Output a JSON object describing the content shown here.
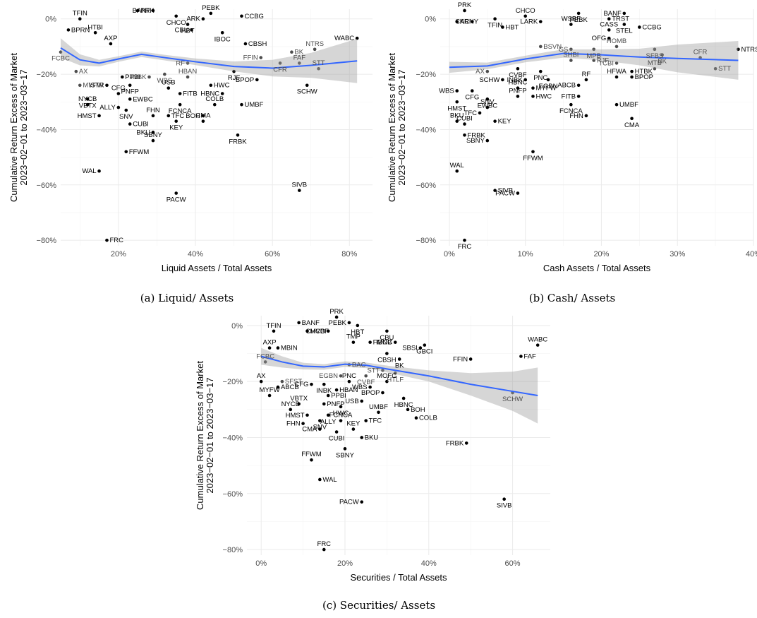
{
  "chart_data": [
    {
      "type": "scatter",
      "caption": "(a) Liquid/ Assets",
      "xlabel": "Liquid Assets / Total Assets",
      "ylabel": "Cumulative Return Excess of Market\n2023−02−01 to 2023−03−17",
      "x_ticks": [
        "20%",
        "40%",
        "60%",
        "80%"
      ],
      "y_ticks": [
        "0%",
        "−20%",
        "−40%",
        "−60%",
        "−80%"
      ],
      "xlim": [
        0.05,
        0.86
      ],
      "ylim": [
        -0.82,
        0.035
      ],
      "smoother": {
        "color": "#3366ff",
        "band": "95% CI (grey)"
      },
      "points": [
        {
          "label": "TFIN",
          "x": 0.1,
          "y": 0.0
        },
        {
          "label": "PRK",
          "x": 0.25,
          "y": 0.03
        },
        {
          "label": "BANF",
          "x": 0.29,
          "y": 0.03
        },
        {
          "label": "CHCO",
          "x": 0.35,
          "y": 0.01
        },
        {
          "label": "PEBK",
          "x": 0.44,
          "y": 0.02
        },
        {
          "label": "CCBG",
          "x": 0.52,
          "y": 0.01
        },
        {
          "label": "ARK",
          "x": 0.42,
          "y": 0.0
        },
        {
          "label": "HBT",
          "x": 0.38,
          "y": -0.02
        },
        {
          "label": "HTBI",
          "x": 0.14,
          "y": -0.05
        },
        {
          "label": "BPRN",
          "x": 0.07,
          "y": -0.04
        },
        {
          "label": "CBU",
          "x": 0.39,
          "y": -0.04
        },
        {
          "label": "IBOC",
          "x": 0.47,
          "y": -0.05
        },
        {
          "label": "AXP",
          "x": 0.18,
          "y": -0.09
        },
        {
          "label": "CBSH",
          "x": 0.53,
          "y": -0.09
        },
        {
          "label": "WABC",
          "x": 0.82,
          "y": -0.07
        },
        {
          "label": "FCBC",
          "x": 0.05,
          "y": -0.12
        },
        {
          "label": "NTRS",
          "x": 0.71,
          "y": -0.11
        },
        {
          "label": "BK",
          "x": 0.65,
          "y": -0.12
        },
        {
          "label": "FFIN",
          "x": 0.57,
          "y": -0.14
        },
        {
          "label": "CFR",
          "x": 0.62,
          "y": -0.16
        },
        {
          "label": "FAF",
          "x": 0.67,
          "y": -0.16
        },
        {
          "label": "AX",
          "x": 0.09,
          "y": -0.19
        },
        {
          "label": "RF",
          "x": 0.38,
          "y": -0.16
        },
        {
          "label": "RJF",
          "x": 0.5,
          "y": -0.19
        },
        {
          "label": "STT",
          "x": 0.72,
          "y": -0.18
        },
        {
          "label": "PPBI",
          "x": 0.21,
          "y": -0.21
        },
        {
          "label": "INBK",
          "x": 0.28,
          "y": -0.21
        },
        {
          "label": "WBS",
          "x": 0.32,
          "y": -0.2
        },
        {
          "label": "HBAN",
          "x": 0.38,
          "y": -0.21
        },
        {
          "label": "MYFW",
          "x": 0.1,
          "y": -0.24
        },
        {
          "label": "ISTR",
          "x": 0.17,
          "y": -0.24
        },
        {
          "label": "PNFP",
          "x": 0.23,
          "y": -0.24
        },
        {
          "label": "USB",
          "x": 0.33,
          "y": -0.25
        },
        {
          "label": "HWC",
          "x": 0.44,
          "y": -0.24
        },
        {
          "label": "BPOP",
          "x": 0.56,
          "y": -0.22
        },
        {
          "label": "VBTX",
          "x": 0.12,
          "y": -0.29
        },
        {
          "label": "CFG",
          "x": 0.2,
          "y": -0.27
        },
        {
          "label": "FITB",
          "x": 0.36,
          "y": -0.27
        },
        {
          "label": "HBNC",
          "x": 0.47,
          "y": -0.27
        },
        {
          "label": "SCHW",
          "x": 0.69,
          "y": -0.24
        },
        {
          "label": "NYCB",
          "x": 0.12,
          "y": -0.31
        },
        {
          "label": "EWBC",
          "x": 0.23,
          "y": -0.29
        },
        {
          "label": "ALLY",
          "x": 0.2,
          "y": -0.32
        },
        {
          "label": "FCNCA",
          "x": 0.36,
          "y": -0.31
        },
        {
          "label": "COLB",
          "x": 0.45,
          "y": -0.31
        },
        {
          "label": "UMBF",
          "x": 0.52,
          "y": -0.31
        },
        {
          "label": "HMST",
          "x": 0.15,
          "y": -0.35
        },
        {
          "label": "SNV",
          "x": 0.22,
          "y": -0.33
        },
        {
          "label": "FHN",
          "x": 0.29,
          "y": -0.35
        },
        {
          "label": "TFC",
          "x": 0.33,
          "y": -0.35
        },
        {
          "label": "BOH",
          "x": 0.42,
          "y": -0.35
        },
        {
          "label": "KEY",
          "x": 0.35,
          "y": -0.37
        },
        {
          "label": "CMA",
          "x": 0.42,
          "y": -0.37
        },
        {
          "label": "CUBI",
          "x": 0.23,
          "y": -0.38
        },
        {
          "label": "BKU",
          "x": 0.29,
          "y": -0.41
        },
        {
          "label": "FRBK",
          "x": 0.51,
          "y": -0.42
        },
        {
          "label": "SBNY",
          "x": 0.29,
          "y": -0.44
        },
        {
          "label": "FFWM",
          "x": 0.22,
          "y": -0.48
        },
        {
          "label": "WAL",
          "x": 0.15,
          "y": -0.55
        },
        {
          "label": "PACW",
          "x": 0.35,
          "y": -0.63
        },
        {
          "label": "SIVB",
          "x": 0.67,
          "y": -0.62
        },
        {
          "label": "FRC",
          "x": 0.17,
          "y": -0.8
        }
      ]
    },
    {
      "type": "scatter",
      "caption": "(b) Cash/ Assets",
      "xlabel": "Cash Assets / Total Assets",
      "ylabel": "Cumulative Return Excess of Market\n2023−02−01 to 2023−03−17",
      "x_ticks": [
        "0%",
        "10%",
        "20%",
        "30%",
        "40%"
      ],
      "y_ticks": [
        "0%",
        "−20%",
        "−40%",
        "−60%",
        "−80%"
      ],
      "xlim": [
        -0.012,
        0.4
      ],
      "ylim": [
        -0.82,
        0.035
      ],
      "smoother": {
        "color": "#3366ff",
        "band": "95% CI (grey)"
      },
      "points": [
        {
          "label": "PRK",
          "x": 0.02,
          "y": 0.03
        },
        {
          "label": "KRNY",
          "x": 0.01,
          "y": -0.01
        },
        {
          "label": "CAC",
          "x": 0.03,
          "y": -0.01
        },
        {
          "label": "TFIN",
          "x": 0.06,
          "y": 0.0
        },
        {
          "label": "CHCO",
          "x": 0.1,
          "y": 0.01
        },
        {
          "label": "HBT",
          "x": 0.07,
          "y": -0.03
        },
        {
          "label": "LARK",
          "x": 0.12,
          "y": -0.01
        },
        {
          "label": "PEBK",
          "x": 0.17,
          "y": 0.02
        },
        {
          "label": "WSBF",
          "x": 0.16,
          "y": -0.02
        },
        {
          "label": "TRST",
          "x": 0.21,
          "y": 0.0
        },
        {
          "label": "BANF",
          "x": 0.23,
          "y": 0.02
        },
        {
          "label": "STEL",
          "x": 0.23,
          "y": -0.02
        },
        {
          "label": "CASS",
          "x": 0.21,
          "y": -0.04
        },
        {
          "label": "CCBG",
          "x": 0.25,
          "y": -0.03
        },
        {
          "label": "OFG",
          "x": 0.21,
          "y": -0.07
        },
        {
          "label": "MPB",
          "x": 0.19,
          "y": -0.11
        },
        {
          "label": "HOMB",
          "x": 0.22,
          "y": -0.1
        },
        {
          "label": "BSVN",
          "x": 0.12,
          "y": -0.1
        },
        {
          "label": "GS",
          "x": 0.16,
          "y": -0.11
        },
        {
          "label": "SFBS",
          "x": 0.27,
          "y": -0.11
        },
        {
          "label": "CFR",
          "x": 0.33,
          "y": -0.14
        },
        {
          "label": "NTRS",
          "x": 0.38,
          "y": -0.11
        },
        {
          "label": "AX",
          "x": 0.05,
          "y": -0.19
        },
        {
          "label": "CVBF",
          "x": 0.09,
          "y": -0.18
        },
        {
          "label": "SHBI",
          "x": 0.16,
          "y": -0.15
        },
        {
          "label": "RJF",
          "x": 0.19,
          "y": -0.15
        },
        {
          "label": "TCBI",
          "x": 0.22,
          "y": -0.16
        },
        {
          "label": "BK",
          "x": 0.28,
          "y": -0.13
        },
        {
          "label": "MTB",
          "x": 0.27,
          "y": -0.18
        },
        {
          "label": "STT",
          "x": 0.35,
          "y": -0.18
        },
        {
          "label": "SCHW",
          "x": 0.07,
          "y": -0.22
        },
        {
          "label": "PNC",
          "x": 0.12,
          "y": -0.19
        },
        {
          "label": "HFWA",
          "x": 0.22,
          "y": -0.21
        },
        {
          "label": "HTBK",
          "x": 0.24,
          "y": -0.19
        },
        {
          "label": "INBK",
          "x": 0.1,
          "y": -0.22
        },
        {
          "label": "EGBN",
          "x": 0.13,
          "y": -0.22
        },
        {
          "label": "RF",
          "x": 0.18,
          "y": -0.22
        },
        {
          "label": "BPOP",
          "x": 0.24,
          "y": -0.21
        },
        {
          "label": "WBS",
          "x": 0.01,
          "y": -0.26
        },
        {
          "label": "CFG",
          "x": 0.03,
          "y": -0.26
        },
        {
          "label": "HBNC",
          "x": 0.09,
          "y": -0.25
        },
        {
          "label": "MYFW",
          "x": 0.11,
          "y": -0.25
        },
        {
          "label": "ABCB",
          "x": 0.17,
          "y": -0.24
        },
        {
          "label": "EWBC",
          "x": 0.05,
          "y": -0.29
        },
        {
          "label": "PNFP",
          "x": 0.09,
          "y": -0.28
        },
        {
          "label": "HWC",
          "x": 0.11,
          "y": -0.28
        },
        {
          "label": "FITB",
          "x": 0.17,
          "y": -0.28
        },
        {
          "label": "HMST",
          "x": 0.01,
          "y": -0.3
        },
        {
          "label": "SNV",
          "x": 0.05,
          "y": -0.32
        },
        {
          "label": "UMBF",
          "x": 0.22,
          "y": -0.31
        },
        {
          "label": "TFC",
          "x": 0.04,
          "y": -0.34
        },
        {
          "label": "FCNCA",
          "x": 0.16,
          "y": -0.31
        },
        {
          "label": "BKU",
          "x": 0.01,
          "y": -0.37
        },
        {
          "label": "KEY",
          "x": 0.06,
          "y": -0.37
        },
        {
          "label": "FHN",
          "x": 0.18,
          "y": -0.35
        },
        {
          "label": "CMA",
          "x": 0.24,
          "y": -0.36
        },
        {
          "label": "CUBI",
          "x": 0.02,
          "y": -0.38
        },
        {
          "label": "FRBK",
          "x": 0.02,
          "y": -0.42
        },
        {
          "label": "SBNY",
          "x": 0.05,
          "y": -0.44
        },
        {
          "label": "FFWM",
          "x": 0.11,
          "y": -0.48
        },
        {
          "label": "WAL",
          "x": 0.01,
          "y": -0.55
        },
        {
          "label": "SIVB",
          "x": 0.06,
          "y": -0.62
        },
        {
          "label": "PACW",
          "x": 0.09,
          "y": -0.63
        },
        {
          "label": "FRC",
          "x": 0.02,
          "y": -0.8
        }
      ]
    },
    {
      "type": "scatter",
      "caption": "(c) Securities/ Assets",
      "xlabel": "Securities / Total Assets",
      "ylabel": "Cumulative Return Excess of Market\n2023−02−01 to 2023−03−17",
      "x_ticks": [
        "0%",
        "20%",
        "40%",
        "60%"
      ],
      "y_ticks": [
        "0%",
        "−20%",
        "−40%",
        "−60%",
        "−80%"
      ],
      "xlim": [
        -0.034,
        0.69
      ],
      "ylim": [
        -0.82,
        0.035
      ],
      "smoother": {
        "color": "#3366ff",
        "band": "95% CI (grey)"
      },
      "points": [
        {
          "label": "PRK",
          "x": 0.18,
          "y": 0.03
        },
        {
          "label": "BANF",
          "x": 0.09,
          "y": 0.01
        },
        {
          "label": "PEBK",
          "x": 0.21,
          "y": 0.01
        },
        {
          "label": "HBT",
          "x": 0.23,
          "y": 0.0
        },
        {
          "label": "TFIN",
          "x": 0.03,
          "y": -0.02
        },
        {
          "label": "MVBF",
          "x": 0.11,
          "y": -0.02
        },
        {
          "label": "CHCO",
          "x": 0.16,
          "y": -0.02
        },
        {
          "label": "CBU",
          "x": 0.3,
          "y": -0.02
        },
        {
          "label": "TMP",
          "x": 0.22,
          "y": -0.06
        },
        {
          "label": "FMNB",
          "x": 0.26,
          "y": -0.06
        },
        {
          "label": "IBOC",
          "x": 0.32,
          "y": -0.06
        },
        {
          "label": "GBCI",
          "x": 0.39,
          "y": -0.07
        },
        {
          "label": "AXP",
          "x": 0.02,
          "y": -0.08
        },
        {
          "label": "MBIN",
          "x": 0.04,
          "y": -0.08
        },
        {
          "label": "SBSI",
          "x": 0.38,
          "y": -0.08
        },
        {
          "label": "CBSH",
          "x": 0.3,
          "y": -0.1
        },
        {
          "label": "WABC",
          "x": 0.66,
          "y": -0.07
        },
        {
          "label": "FAF",
          "x": 0.62,
          "y": -0.11
        },
        {
          "label": "FFIN",
          "x": 0.5,
          "y": -0.12
        },
        {
          "label": "BK",
          "x": 0.33,
          "y": -0.12
        },
        {
          "label": "FCBC",
          "x": 0.01,
          "y": -0.13
        },
        {
          "label": "BAC",
          "x": 0.21,
          "y": -0.14
        },
        {
          "label": "STT",
          "x": 0.29,
          "y": -0.16
        },
        {
          "label": "HTLF",
          "x": 0.32,
          "y": -0.17
        },
        {
          "label": "AX",
          "x": 0.0,
          "y": -0.2
        },
        {
          "label": "SFST",
          "x": 0.05,
          "y": -0.2
        },
        {
          "label": "EGBN",
          "x": 0.19,
          "y": -0.18
        },
        {
          "label": "CVBF",
          "x": 0.25,
          "y": -0.18
        },
        {
          "label": "MOFG",
          "x": 0.3,
          "y": -0.2
        },
        {
          "label": "ABCB",
          "x": 0.04,
          "y": -0.22
        },
        {
          "label": "CFG",
          "x": 0.12,
          "y": -0.21
        },
        {
          "label": "INBK",
          "x": 0.15,
          "y": -0.21
        },
        {
          "label": "PNC",
          "x": 0.21,
          "y": -0.2
        },
        {
          "label": "HBAN",
          "x": 0.18,
          "y": -0.23
        },
        {
          "label": "WBS",
          "x": 0.26,
          "y": -0.22
        },
        {
          "label": "SCHW",
          "x": 0.6,
          "y": -0.24
        },
        {
          "label": "MYFW",
          "x": 0.02,
          "y": -0.25
        },
        {
          "label": "PPBI",
          "x": 0.16,
          "y": -0.25
        },
        {
          "label": "BPOP",
          "x": 0.29,
          "y": -0.24
        },
        {
          "label": "HBNC",
          "x": 0.34,
          "y": -0.26
        },
        {
          "label": "VBTX",
          "x": 0.09,
          "y": -0.28
        },
        {
          "label": "PNFP",
          "x": 0.15,
          "y": -0.28
        },
        {
          "label": "USB",
          "x": 0.24,
          "y": -0.27
        },
        {
          "label": "HWC",
          "x": 0.19,
          "y": -0.29
        },
        {
          "label": "NYCB",
          "x": 0.07,
          "y": -0.3
        },
        {
          "label": "BOH",
          "x": 0.35,
          "y": -0.3
        },
        {
          "label": "HMST",
          "x": 0.11,
          "y": -0.32
        },
        {
          "label": "ALLY",
          "x": 0.16,
          "y": -0.32
        },
        {
          "label": "UMBF",
          "x": 0.28,
          "y": -0.31
        },
        {
          "label": "COLB",
          "x": 0.37,
          "y": -0.33
        },
        {
          "label": "FHN",
          "x": 0.1,
          "y": -0.35
        },
        {
          "label": "SNV",
          "x": 0.14,
          "y": -0.34
        },
        {
          "label": "FCNCA",
          "x": 0.19,
          "y": -0.34
        },
        {
          "label": "TFC",
          "x": 0.25,
          "y": -0.34
        },
        {
          "label": "CMA",
          "x": 0.14,
          "y": -0.37
        },
        {
          "label": "CUBI",
          "x": 0.18,
          "y": -0.38
        },
        {
          "label": "KEY",
          "x": 0.22,
          "y": -0.37
        },
        {
          "label": "BKU",
          "x": 0.24,
          "y": -0.4
        },
        {
          "label": "FRBK",
          "x": 0.49,
          "y": -0.42
        },
        {
          "label": "SBNY",
          "x": 0.2,
          "y": -0.44
        },
        {
          "label": "FFWM",
          "x": 0.12,
          "y": -0.48
        },
        {
          "label": "WAL",
          "x": 0.14,
          "y": -0.55
        },
        {
          "label": "PACW",
          "x": 0.24,
          "y": -0.63
        },
        {
          "label": "SIVB",
          "x": 0.58,
          "y": -0.62
        },
        {
          "label": "FRC",
          "x": 0.15,
          "y": -0.8
        }
      ]
    }
  ]
}
